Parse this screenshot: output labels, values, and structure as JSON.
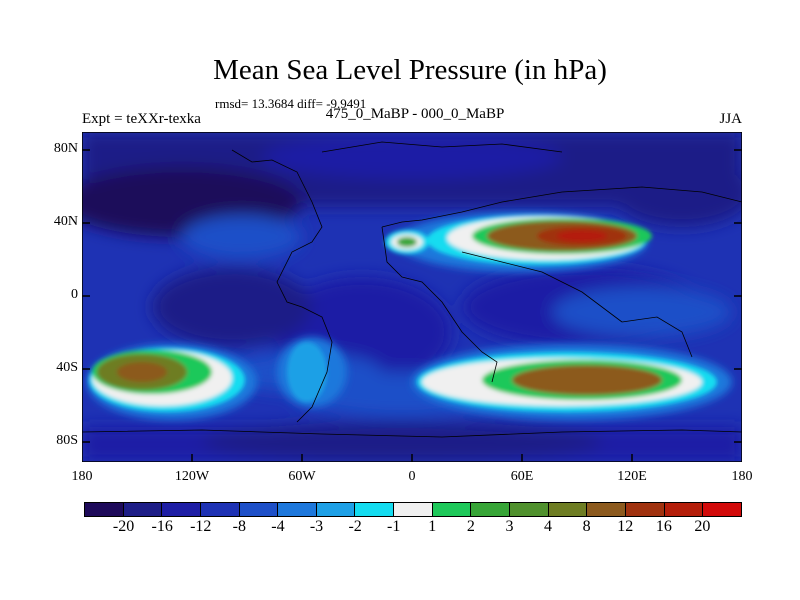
{
  "title": "Mean Sea Level Pressure (in hPa)",
  "stats": "rmsd= 13.3684 diff= -9.9491",
  "experiment": "Expt = teXXr-texka",
  "comparison": "475_0_MaBP - 000_0_MaBP",
  "season": "JJA",
  "y_ticks": [
    "80N",
    "40N",
    "0",
    "40S",
    "80S"
  ],
  "x_ticks": [
    "180",
    "120W",
    "60W",
    "0",
    "60E",
    "120E",
    "180"
  ],
  "colorbar": {
    "labels": [
      "-20",
      "-16",
      "-12",
      "-8",
      "-4",
      "-3",
      "-2",
      "-1",
      "1",
      "2",
      "3",
      "4",
      "8",
      "12",
      "16",
      "20"
    ],
    "colors": [
      "#1e0a5a",
      "#1e1e87",
      "#1e1ea5",
      "#1e32b4",
      "#1e50c8",
      "#1e78dc",
      "#1ea0e6",
      "#14dcf0",
      "#f0f0f0",
      "#1ec85a",
      "#37a537",
      "#50912d",
      "#6e7d23",
      "#8c5a1e",
      "#a0320f",
      "#b41e0a",
      "#d20a0a"
    ]
  }
}
